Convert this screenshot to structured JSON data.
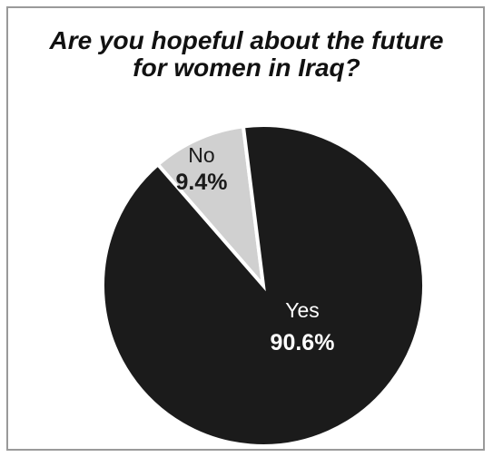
{
  "chart_data": {
    "type": "pie",
    "title_lines": [
      "Are you hopeful about the future",
      "for women in Iraq?"
    ],
    "slices": [
      {
        "label": "Yes",
        "value": 90.6,
        "value_label": "90.6%",
        "color": "#1b1b1b",
        "text_color": "#ffffff"
      },
      {
        "label": "No",
        "value": 9.4,
        "value_label": "9.4%",
        "color": "#d0d0d0",
        "text_color": "#1b1b1b"
      }
    ],
    "slice_border_color": "#ffffff"
  }
}
